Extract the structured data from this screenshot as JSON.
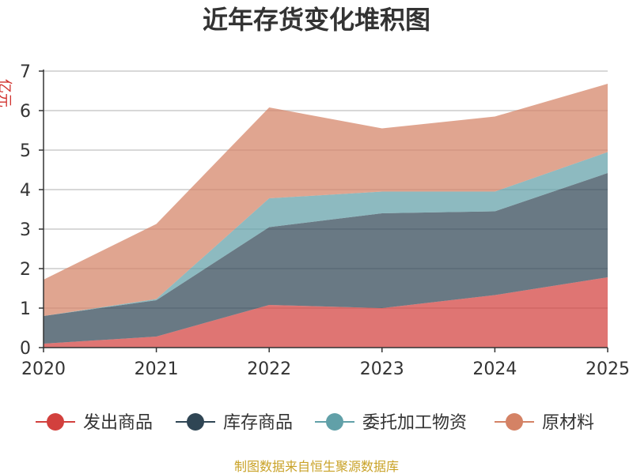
{
  "chart_data": {
    "type": "area",
    "stacked": true,
    "title": "近年存货变化堆积图",
    "ylabel": "亿元",
    "x": [
      "2020",
      "2021",
      "2022",
      "2023",
      "2024",
      "2025"
    ],
    "ylim": [
      0,
      7
    ],
    "yticks": [
      0,
      1,
      2,
      3,
      4,
      5,
      6,
      7
    ],
    "grid": true,
    "legend_position": "bottom",
    "series": [
      {
        "name": "发出商品",
        "color": "#d2403d",
        "values": [
          0.1,
          0.28,
          1.08,
          1.0,
          1.33,
          1.78
        ]
      },
      {
        "name": "库存商品",
        "color": "#2f4554",
        "values": [
          0.7,
          0.92,
          1.97,
          2.4,
          2.12,
          2.64
        ]
      },
      {
        "name": "委托加工物资",
        "color": "#61a0a8",
        "values": [
          0.0,
          0.03,
          0.73,
          0.55,
          0.5,
          0.53
        ]
      },
      {
        "name": "原材料",
        "color": "#d48265",
        "values": [
          0.92,
          1.9,
          2.3,
          1.6,
          1.9,
          1.73
        ]
      }
    ]
  },
  "source": "制图数据来自恒生聚源数据库"
}
